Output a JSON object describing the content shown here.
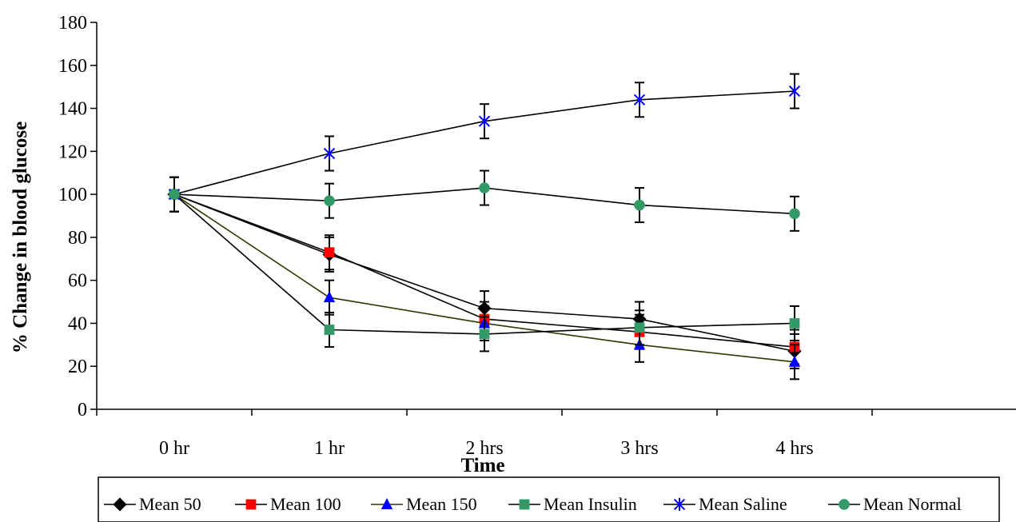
{
  "chart_data": {
    "type": "line",
    "title": "",
    "xlabel": "Time",
    "ylabel": "% Change in blood glucose",
    "categories": [
      "0 hr",
      "1 hr",
      "2 hrs",
      "3 hrs",
      "4 hrs"
    ],
    "ylim": [
      0,
      180
    ],
    "yticks": [
      0,
      20,
      40,
      60,
      80,
      100,
      120,
      140,
      160,
      180
    ],
    "grid": false,
    "legend_position": "bottom",
    "error_bar": 8,
    "series": [
      {
        "name": "Mean 50",
        "values": [
          100,
          72,
          47,
          42,
          27
        ],
        "color": "#000000",
        "marker": "diamond",
        "line_color": "#000000"
      },
      {
        "name": "Mean 100",
        "values": [
          100,
          73,
          42,
          36,
          29
        ],
        "color": "#ff0000",
        "marker": "square",
        "line_color": "#000000"
      },
      {
        "name": "Mean 150",
        "values": [
          100,
          52,
          40,
          30,
          22
        ],
        "color": "#0000ff",
        "marker": "triangle",
        "line_color": "#333300"
      },
      {
        "name": "Mean Insulin",
        "values": [
          100,
          37,
          35,
          38,
          40
        ],
        "color": "#339966",
        "marker": "square",
        "line_color": "#000000"
      },
      {
        "name": "Mean Saline",
        "values": [
          100,
          119,
          134,
          144,
          148
        ],
        "color": "#0000ff",
        "marker": "star",
        "line_color": "#000000"
      },
      {
        "name": "Mean Normal",
        "values": [
          100,
          97,
          103,
          95,
          91
        ],
        "color": "#339966",
        "marker": "circle",
        "line_color": "#000000"
      }
    ]
  }
}
